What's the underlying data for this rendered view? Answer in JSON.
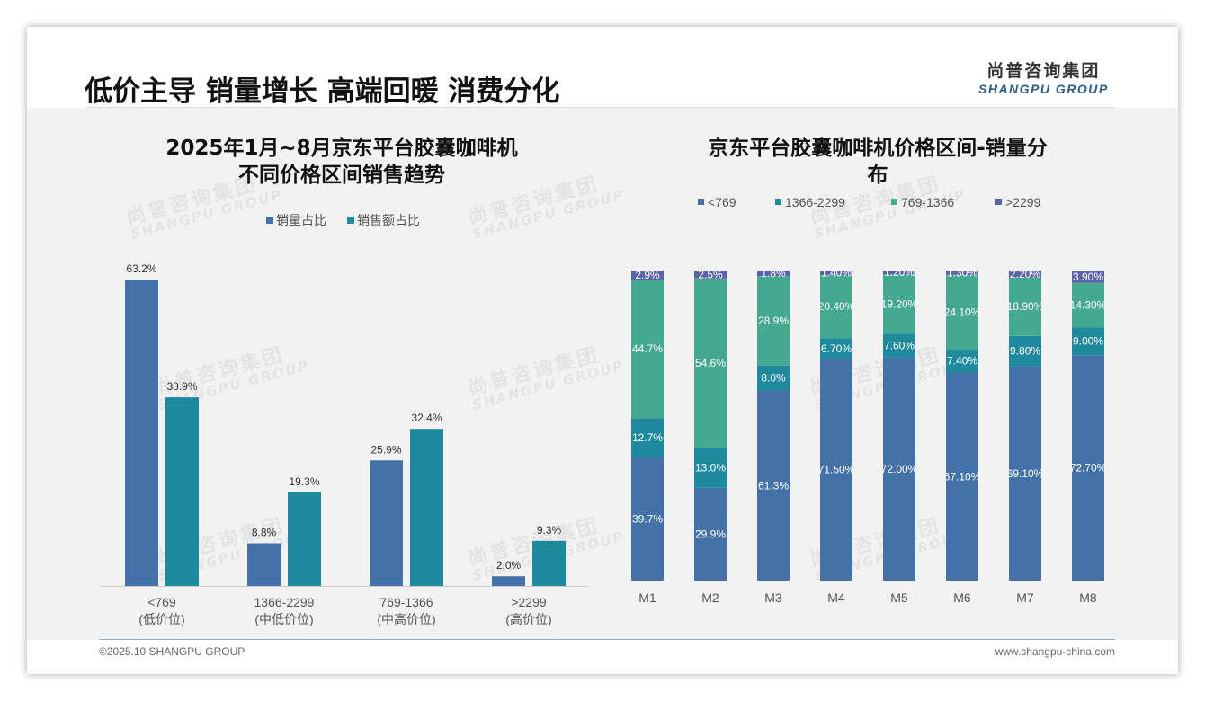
{
  "headline": "低价主导 销量增长 高端回暖 消费分化",
  "logo": {
    "cn": "尚普咨询集团",
    "en": "SHANGPU GROUP"
  },
  "watermark": {
    "cn": "尚普咨询集团",
    "en": "SHANGPU GROUP"
  },
  "footer": {
    "left": "©2025.10 SHANGPU GROUP",
    "right": "www.shangpu-china.com"
  },
  "chart_data": [
    {
      "type": "bar",
      "title": [
        "2025年1月~8月京东平台胶囊咖啡机",
        "不同价格区间销售趋势"
      ],
      "categories": [
        [
          "<769",
          "(低价位)"
        ],
        [
          "1366-2299",
          "(中低价位)"
        ],
        [
          "769-1366",
          "(中高价位)"
        ],
        [
          ">2299",
          "(高价位)"
        ]
      ],
      "series": [
        {
          "name": "销量占比",
          "color": "#4472a8",
          "values": [
            63.2,
            8.8,
            25.9,
            2.0
          ],
          "labels": [
            "63.2%",
            "8.8%",
            "25.9%",
            "2.0%"
          ]
        },
        {
          "name": "销售额占比",
          "color": "#1f8a9e",
          "values": [
            38.9,
            19.3,
            32.4,
            9.3
          ],
          "labels": [
            "38.9%",
            "19.3%",
            "32.4%",
            "9.3%"
          ]
        }
      ],
      "ylim": [
        0,
        70
      ],
      "legend": "top",
      "grid": false
    },
    {
      "type": "bar",
      "stacked": true,
      "title": [
        "京东平台胶囊咖啡机价格区间-销量分",
        "布"
      ],
      "categories": [
        "M1",
        "M2",
        "M3",
        "M4",
        "M5",
        "M6",
        "M7",
        "M8"
      ],
      "legend_order": [
        "<769",
        "1366-2299",
        "769-1366",
        ">2299"
      ],
      "series": [
        {
          "name": "<769",
          "color": "#4472a8",
          "values": [
            39.7,
            29.9,
            61.3,
            71.5,
            72.0,
            67.1,
            69.1,
            72.7
          ],
          "labels": [
            "39.7%",
            "29.9%",
            "61.3%",
            "71.50%",
            "72.00%",
            "67.10%",
            "69.10%",
            "72.70%"
          ]
        },
        {
          "name": "1366-2299",
          "color": "#1f8a9e",
          "values": [
            12.7,
            13.0,
            8.0,
            6.7,
            7.6,
            7.4,
            9.8,
            9.0
          ],
          "labels": [
            "12.7%",
            "13.0%",
            "8.0%",
            "6.70%",
            "7.60%",
            "7.40%",
            "9.80%",
            "9.00%"
          ]
        },
        {
          "name": "769-1366",
          "color": "#45a890",
          "values": [
            44.7,
            54.6,
            28.9,
            20.4,
            19.2,
            24.1,
            18.9,
            14.3
          ],
          "labels": [
            "44.7%",
            "54.6%",
            "28.9%",
            "20.40%",
            "19.20%",
            "24.10%",
            "18.90%",
            "14.30%"
          ]
        },
        {
          "name": ">2299",
          "color": "#5a63a8",
          "values": [
            2.9,
            2.5,
            1.8,
            1.4,
            1.2,
            1.3,
            2.2,
            3.9
          ],
          "labels": [
            "2.9%",
            "2.5%",
            "1.8%",
            "1.40%",
            "1.20%",
            "1.30%",
            "2.20%",
            "3.90%"
          ]
        }
      ],
      "ylim": [
        0,
        100
      ],
      "legend": "top",
      "grid": false
    }
  ]
}
